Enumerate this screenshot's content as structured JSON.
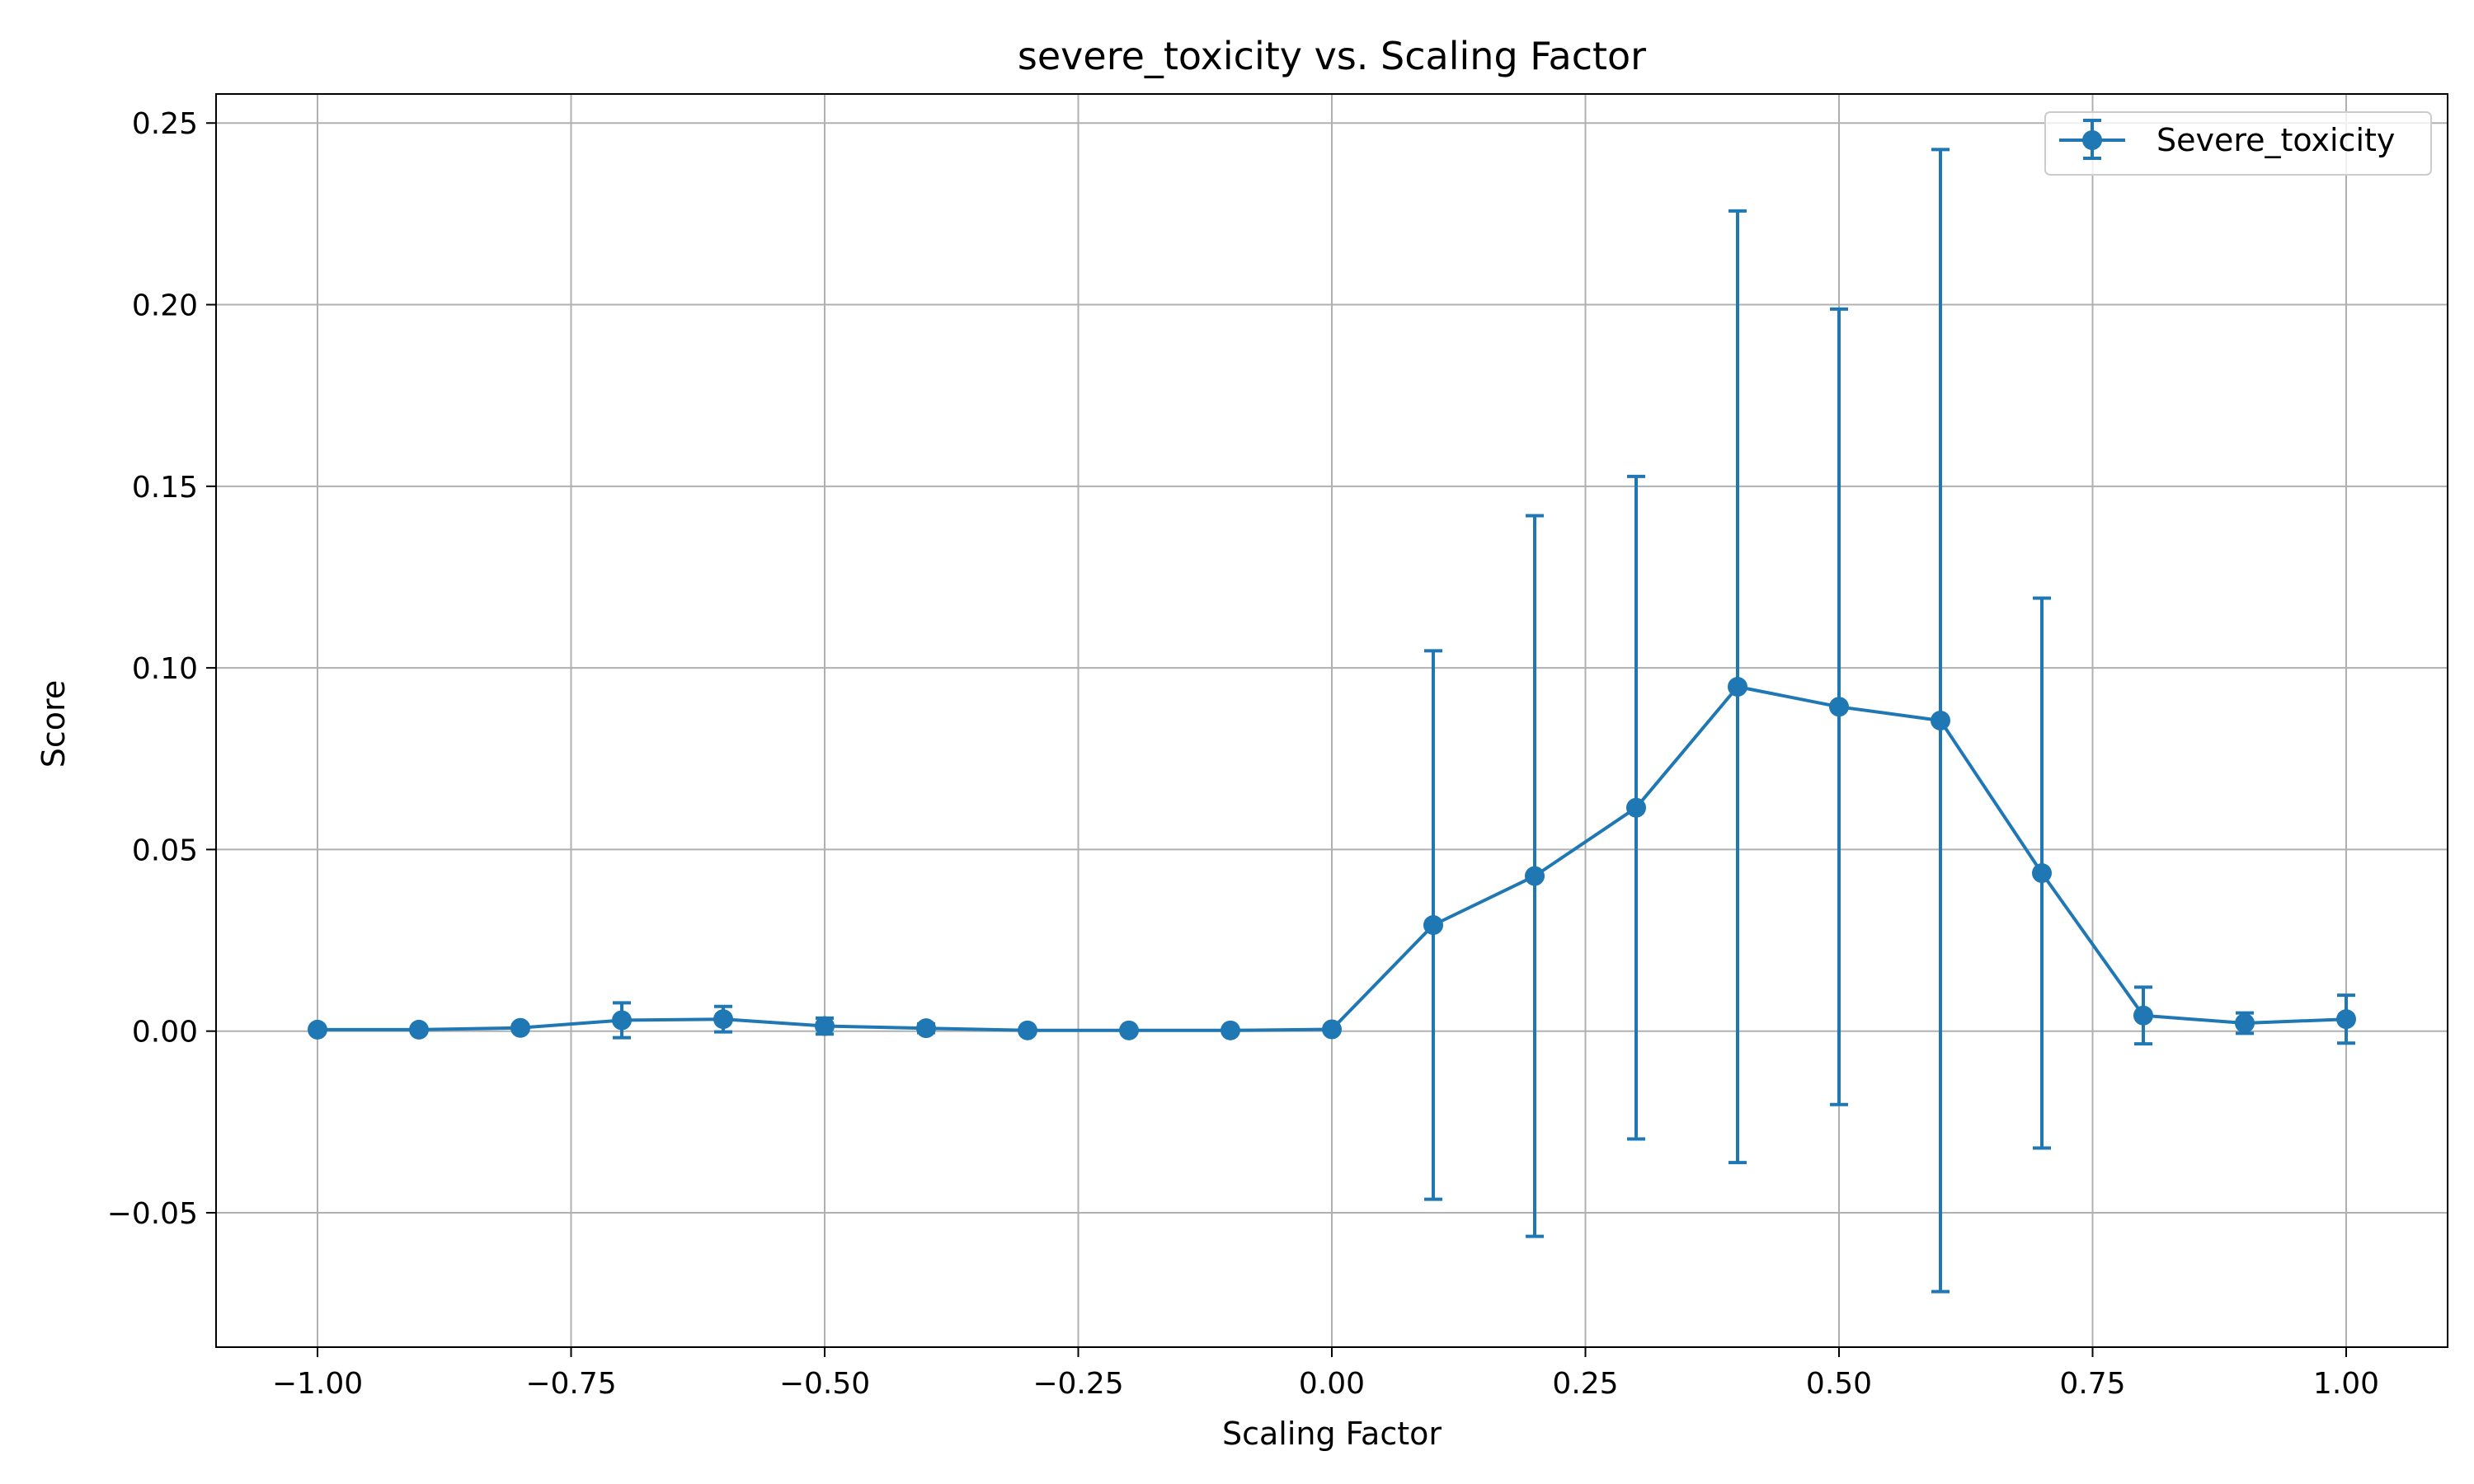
{
  "chart_data": {
    "type": "line",
    "title": "severe_toxicity vs. Scaling Factor",
    "xlabel": "Scaling Factor",
    "ylabel": "Score",
    "xlim": [
      -1.1,
      1.1
    ],
    "ylim": [
      -0.087,
      0.258
    ],
    "xticks": [
      "−1.00",
      "−0.75",
      "−0.50",
      "−0.25",
      "0.00",
      "0.25",
      "0.50",
      "0.75",
      "1.00"
    ],
    "xtick_values": [
      -1.0,
      -0.75,
      -0.5,
      -0.25,
      0.0,
      0.25,
      0.5,
      0.75,
      1.0
    ],
    "yticks": [
      "−0.05",
      "0.00",
      "0.05",
      "0.10",
      "0.15",
      "0.20",
      "0.25"
    ],
    "ytick_values": [
      -0.05,
      0.0,
      0.05,
      0.1,
      0.15,
      0.2,
      0.25
    ],
    "grid": true,
    "legend_position": "top-right",
    "color": "#1f77b4",
    "series": [
      {
        "name": "Severe_toxicity",
        "x": [
          -1.0,
          -0.9,
          -0.8,
          -0.7,
          -0.6,
          -0.5,
          -0.4,
          -0.3,
          -0.2,
          -0.1,
          0.0,
          0.1,
          0.2,
          0.3,
          0.4,
          0.5,
          0.6,
          0.7,
          0.8,
          0.9,
          1.0
        ],
        "y": [
          0.0004,
          0.0004,
          0.0009,
          0.003,
          0.0033,
          0.0014,
          0.0008,
          0.0002,
          0.0002,
          0.0002,
          0.0005,
          0.0292,
          0.0427,
          0.0615,
          0.0948,
          0.0893,
          0.0855,
          0.0435,
          0.0043,
          0.0022,
          0.0033
        ],
        "err": [
          0.0005,
          0.0005,
          0.0008,
          0.0048,
          0.0035,
          0.0022,
          0.0012,
          0.0003,
          0.0003,
          0.0003,
          0.0006,
          0.0755,
          0.0992,
          0.0912,
          0.131,
          0.1095,
          0.1572,
          0.0757,
          0.0078,
          0.0028,
          0.0066
        ]
      }
    ]
  }
}
